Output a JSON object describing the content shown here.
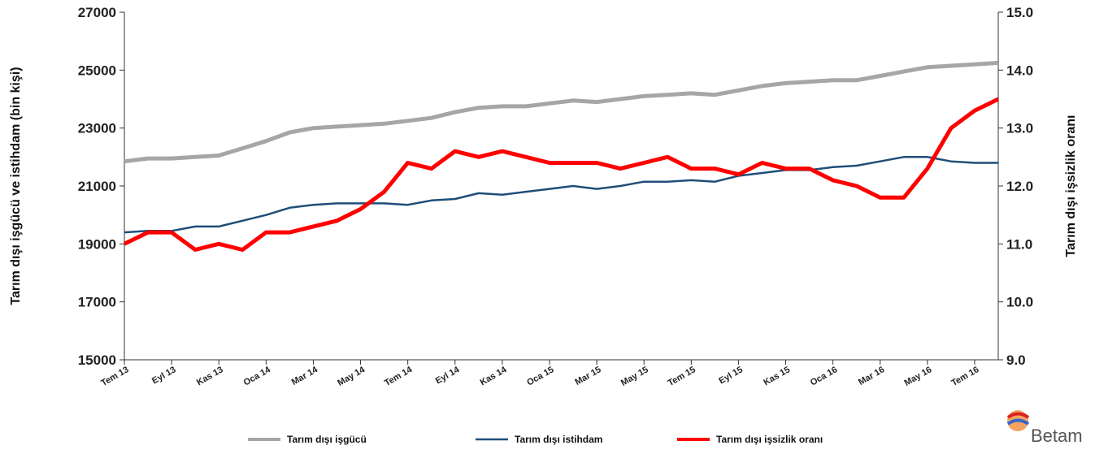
{
  "chart_data": {
    "type": "line",
    "categories": [
      "Tem 13",
      null,
      "Eyl 13",
      null,
      "Kas 13",
      null,
      "Oca 14",
      null,
      "Mar 14",
      null,
      "May 14",
      null,
      "Tem 14",
      null,
      "Eyl 14",
      null,
      "Kas 14",
      null,
      "Oca 15",
      null,
      "Mar 15",
      null,
      "May 15",
      null,
      "Tem 15",
      null,
      "Eyl 15",
      null,
      "Kas 15",
      null,
      "Oca 16",
      null,
      "Mar 16",
      null,
      "May 16",
      null,
      "Tem 16",
      null
    ],
    "ylabel": "Tarım dışı işgücü ve istihdam (bin kişi)",
    "y2label": "Tarım dışı işsizlik oranı",
    "ylim": [
      15000,
      27000
    ],
    "yticks": [
      15000,
      17000,
      19000,
      21000,
      23000,
      25000,
      27000
    ],
    "y2lim": [
      9,
      15
    ],
    "y2ticks": [
      {
        "value": 9,
        "label": "9.0"
      },
      {
        "value": 10,
        "label": "10.0"
      },
      {
        "value": 11,
        "label": "11.0"
      },
      {
        "value": 12,
        "label": "12.0"
      },
      {
        "value": 13,
        "label": "13.0"
      },
      {
        "value": 14,
        "label": "14.0"
      },
      {
        "value": 15,
        "label": "15.0"
      }
    ],
    "series": [
      {
        "name": "Tarım dışı işgücü",
        "color": "#a6a6a6",
        "values": [
          21850,
          21950,
          21950,
          22000,
          22050,
          22300,
          22550,
          22850,
          23000,
          23050,
          23100,
          23150,
          23250,
          23350,
          23550,
          23700,
          23750,
          23750,
          23850,
          23950,
          23900,
          24000,
          24100,
          24150,
          24200,
          24150,
          24300,
          24450,
          24550,
          24600,
          24650,
          24650,
          24800,
          24950,
          25100,
          25150,
          25200,
          25250
        ]
      },
      {
        "name": "Tarım dışı istihdam",
        "color": "#1f4e79",
        "values": [
          19400,
          19450,
          19450,
          19600,
          19600,
          19800,
          20000,
          20250,
          20350,
          20400,
          20400,
          20400,
          20350,
          20500,
          20550,
          20750,
          20700,
          20800,
          20900,
          21000,
          20900,
          21000,
          21150,
          21150,
          21200,
          21150,
          21350,
          21450,
          21550,
          21550,
          21650,
          21700,
          21850,
          22000,
          22000,
          21850,
          21800,
          21800
        ]
      },
      {
        "name": "Tarım dışı işsizlik oranı",
        "color": "#ff0000",
        "axis": "y2",
        "values": [
          11.0,
          11.2,
          11.2,
          10.9,
          11.0,
          10.9,
          11.2,
          11.2,
          11.3,
          11.4,
          11.6,
          11.9,
          12.4,
          12.3,
          12.6,
          12.5,
          12.6,
          12.5,
          12.4,
          12.4,
          12.4,
          12.3,
          12.4,
          12.5,
          12.3,
          12.3,
          12.2,
          12.4,
          12.3,
          12.3,
          12.1,
          12.0,
          11.8,
          11.8,
          12.3,
          13.0,
          13.3,
          13.5
        ]
      }
    ],
    "logo": "Betam"
  }
}
